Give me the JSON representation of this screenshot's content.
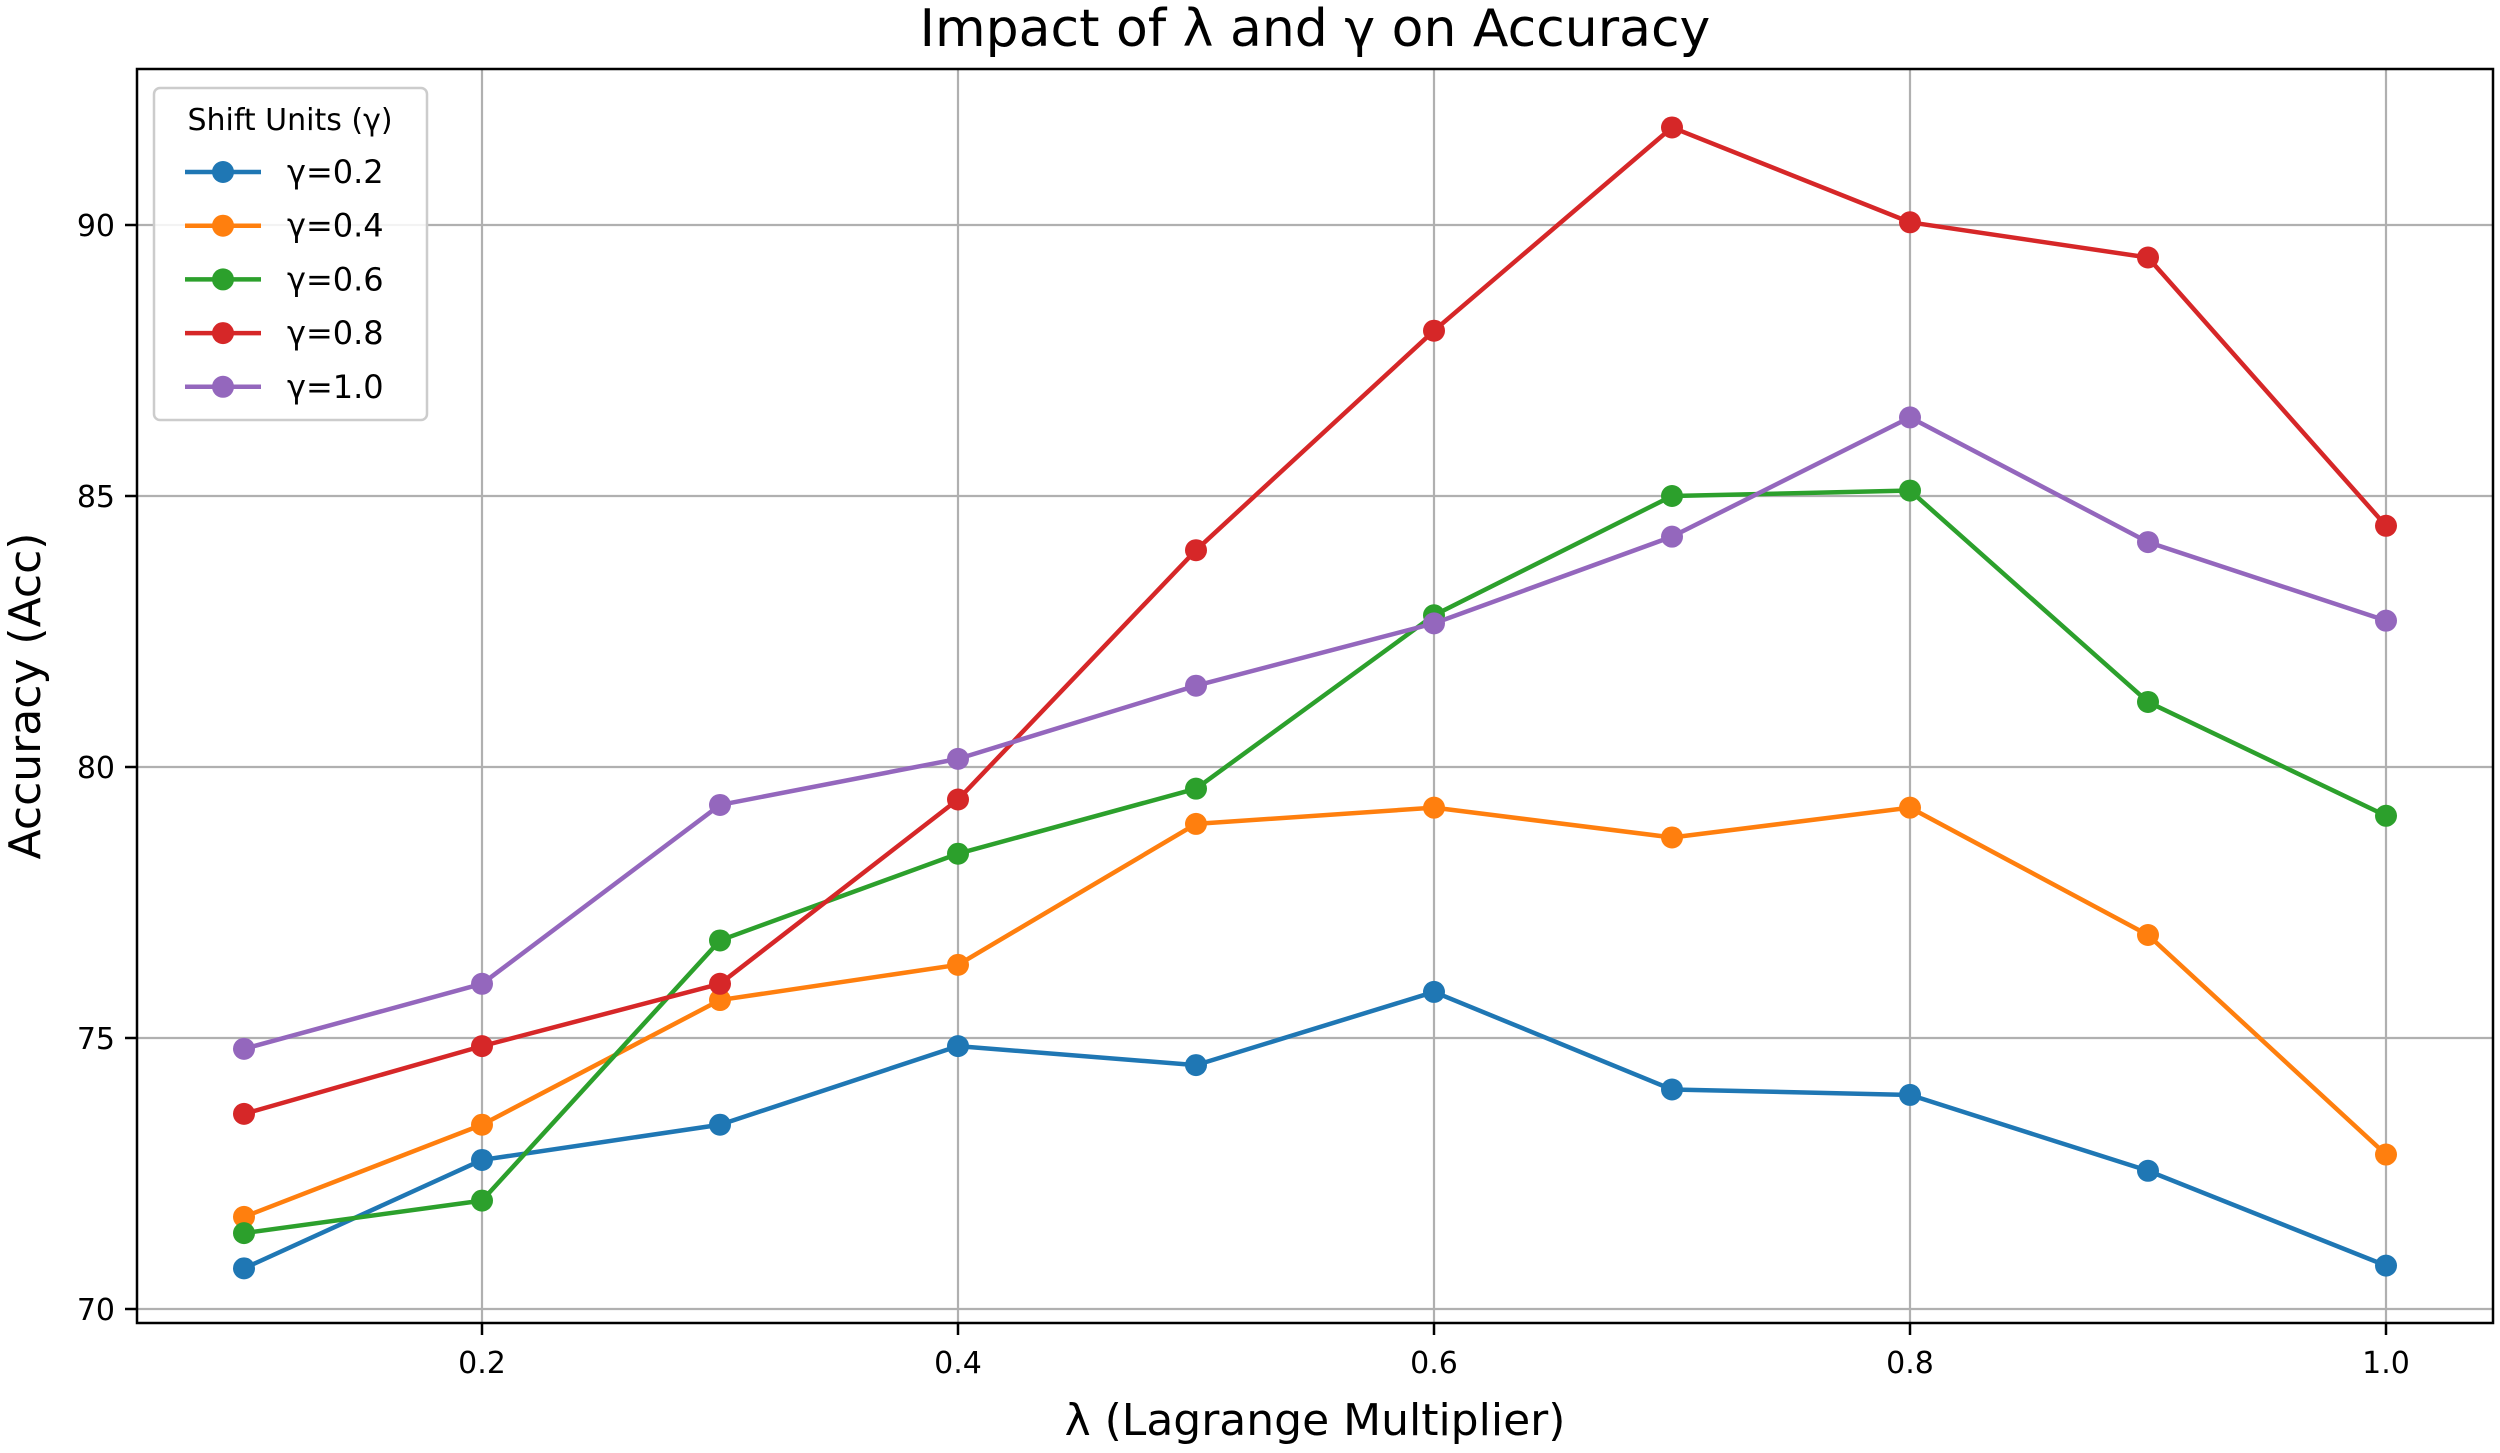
{
  "chart_data": {
    "type": "line",
    "title": "Impact of λ and γ on Accuracy",
    "xlabel": "λ (Lagrange Multiplier)",
    "ylabel": "Accuracy (Acc)",
    "x": [
      0.1,
      0.2,
      0.3,
      0.4,
      0.5,
      0.6,
      0.7,
      0.8,
      0.9,
      1.0
    ],
    "xticks": [
      "0.2",
      "0.4",
      "0.6",
      "0.8",
      "1.0"
    ],
    "xtick_values": [
      0.2,
      0.4,
      0.6,
      0.8,
      1.0
    ],
    "yticks": [
      "70",
      "75",
      "80",
      "85",
      "90"
    ],
    "ytick_values": [
      70,
      75,
      80,
      85,
      90
    ],
    "xlim": [
      0.055,
      1.045
    ],
    "ylim": [
      69.75,
      92.9
    ],
    "grid": true,
    "legend_title": "Shift Units (γ)",
    "legend_position": "upper left",
    "series": [
      {
        "name": "γ=0.2",
        "color": "#1f77b4",
        "values": [
          70.75,
          72.75,
          73.4,
          74.85,
          74.5,
          75.85,
          74.05,
          73.95,
          72.55,
          70.8
        ]
      },
      {
        "name": "γ=0.4",
        "color": "#ff7f0e",
        "values": [
          71.7,
          73.4,
          75.7,
          76.35,
          78.95,
          79.25,
          78.7,
          79.25,
          76.9,
          72.85
        ]
      },
      {
        "name": "γ=0.6",
        "color": "#2ca02c",
        "values": [
          71.4,
          72.0,
          76.8,
          78.4,
          79.6,
          82.8,
          85.0,
          85.1,
          81.2,
          79.1
        ]
      },
      {
        "name": "γ=0.8",
        "color": "#d62728",
        "values": [
          73.6,
          74.85,
          76.0,
          79.4,
          84.0,
          88.05,
          91.8,
          90.05,
          89.4,
          84.45
        ]
      },
      {
        "name": "γ=1.0",
        "color": "#9467bd",
        "values": [
          74.8,
          76.0,
          79.3,
          80.15,
          81.5,
          82.65,
          84.25,
          86.45,
          84.15,
          82.7
        ]
      }
    ]
  }
}
